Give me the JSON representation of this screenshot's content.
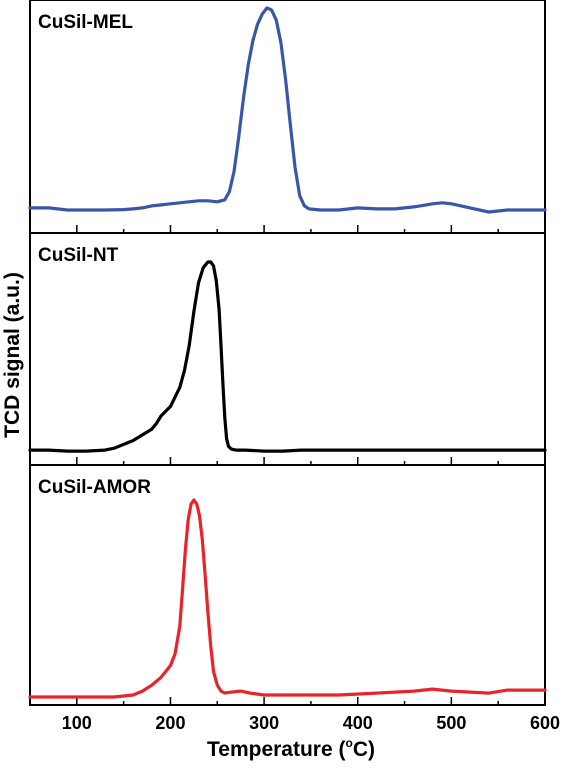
{
  "ylabel": "TCD signal (a.u.)",
  "xlabel": "Temperature (",
  "xlabel_degree": "o",
  "xlabel_unit": "C)",
  "chart_data": {
    "type": "line",
    "xlim": [
      50,
      600
    ],
    "xticks": [
      100,
      200,
      300,
      400,
      500,
      600
    ],
    "xlabel": "Temperature (°C)",
    "ylabel": "TCD signal (a.u.)",
    "grid": false,
    "panels": [
      {
        "name": "CuSil-MEL",
        "color": "#3a56a8",
        "ylim": [
          0,
          1
        ],
        "series": [
          {
            "name": "CuSil-MEL",
            "x": [
              50,
              70,
              90,
              110,
              130,
              150,
              160,
              170,
              180,
              190,
              200,
              210,
              220,
              230,
              240,
              250,
              258,
              263,
              268,
              273,
              278,
              283,
              288,
              293,
              298,
              303,
              308,
              313,
              318,
              323,
              328,
              333,
              338,
              343,
              348,
              360,
              380,
              400,
              420,
              440,
              460,
              480,
              490,
              500,
              520,
              540,
              560,
              580,
              600
            ],
            "y": [
              0.02,
              0.02,
              0.01,
              0.01,
              0.01,
              0.012,
              0.015,
              0.02,
              0.03,
              0.035,
              0.04,
              0.045,
              0.05,
              0.055,
              0.055,
              0.05,
              0.06,
              0.1,
              0.2,
              0.37,
              0.56,
              0.72,
              0.84,
              0.92,
              0.97,
              1.0,
              0.99,
              0.94,
              0.83,
              0.65,
              0.43,
              0.22,
              0.08,
              0.03,
              0.015,
              0.01,
              0.01,
              0.02,
              0.015,
              0.015,
              0.025,
              0.04,
              0.045,
              0.04,
              0.02,
              0.0,
              0.01,
              0.01,
              0.01
            ]
          }
        ]
      },
      {
        "name": "CuSil-NT",
        "color": "#000000",
        "ylim": [
          0,
          1
        ],
        "series": [
          {
            "name": "CuSil-NT",
            "x": [
              50,
              70,
              90,
              110,
              130,
              140,
              150,
              160,
              170,
              180,
              185,
              190,
              200,
              210,
              215,
              220,
              225,
              230,
              235,
              240,
              243,
              246,
              249,
              252,
              254,
              256,
              258,
              260,
              262,
              265,
              270,
              280,
              300,
              320,
              340,
              360,
              400,
              450,
              500,
              550,
              600
            ],
            "y": [
              0.01,
              0.01,
              0.005,
              0.005,
              0.01,
              0.02,
              0.04,
              0.06,
              0.09,
              0.12,
              0.15,
              0.19,
              0.24,
              0.34,
              0.43,
              0.56,
              0.74,
              0.89,
              0.97,
              1.0,
              1.0,
              0.98,
              0.9,
              0.75,
              0.56,
              0.36,
              0.18,
              0.07,
              0.03,
              0.015,
              0.01,
              0.01,
              0.005,
              0.005,
              0.01,
              0.01,
              0.01,
              0.01,
              0.01,
              0.01,
              0.01
            ]
          }
        ]
      },
      {
        "name": "CuSil-AMOR",
        "color": "#e8242b",
        "ylim": [
          0,
          1
        ],
        "series": [
          {
            "name": "CuSil-AMOR",
            "x": [
              50,
              80,
              110,
              140,
              160,
              170,
              180,
              190,
              200,
              205,
              210,
              213,
              216,
              219,
              222,
              225,
              228,
              231,
              234,
              237,
              240,
              243,
              246,
              250,
              254,
              258,
              265,
              275,
              285,
              300,
              340,
              380,
              420,
              460,
              480,
              500,
              540,
              560,
              580,
              600
            ],
            "y": [
              0.0,
              0.0,
              0.0,
              0.0,
              0.01,
              0.03,
              0.06,
              0.1,
              0.16,
              0.22,
              0.36,
              0.55,
              0.75,
              0.9,
              0.98,
              1.0,
              0.98,
              0.92,
              0.8,
              0.62,
              0.43,
              0.26,
              0.13,
              0.06,
              0.03,
              0.02,
              0.025,
              0.03,
              0.02,
              0.01,
              0.01,
              0.01,
              0.02,
              0.03,
              0.04,
              0.03,
              0.02,
              0.035,
              0.035,
              0.035
            ]
          }
        ]
      }
    ]
  }
}
